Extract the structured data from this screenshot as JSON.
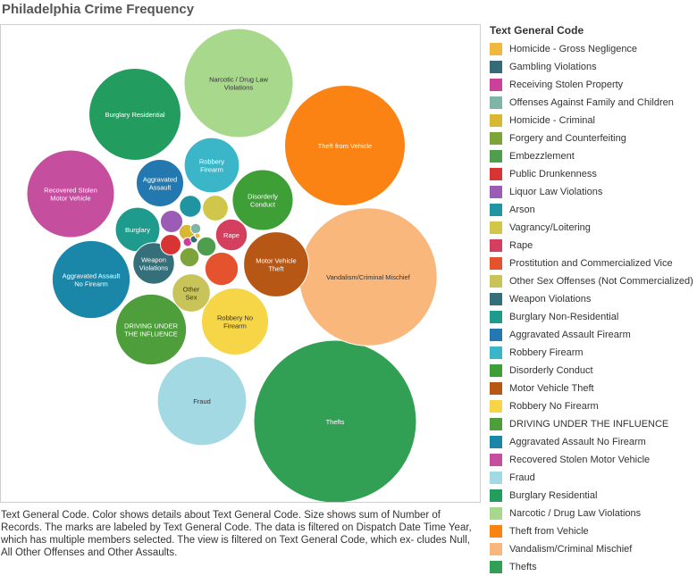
{
  "title": "Philadelphia Crime Frequency",
  "caption": "Text General Code.  Color shows details about Text General Code.  Size shows sum of Number of Records.  The marks are labeled by Text General Code. The data is filtered on Dispatch Date Time Year, which has multiple members selected. The view is filtered on Text General Code, which ex- cludes Null, All Other Offenses and Other Assaults.",
  "legend": {
    "title": "Text General Code",
    "items": [
      {
        "label": "Homicide - Gross Negligence",
        "color": "#F0B83E"
      },
      {
        "label": "Gambling Violations",
        "color": "#356B77"
      },
      {
        "label": "Receiving Stolen Property",
        "color": "#C9419B"
      },
      {
        "label": "Offenses Against Family and Children",
        "color": "#7FB4A9"
      },
      {
        "label": "Homicide - Criminal",
        "color": "#D8B832"
      },
      {
        "label": "Forgery and Counterfeiting",
        "color": "#7DA43A"
      },
      {
        "label": "Embezzlement",
        "color": "#4F9E4E"
      },
      {
        "label": "Public Drunkenness",
        "color": "#D93434"
      },
      {
        "label": "Liquor Law Violations",
        "color": "#9B5CB6"
      },
      {
        "label": "Arson",
        "color": "#1F95A2"
      },
      {
        "label": "Vagrancy/Loitering",
        "color": "#CFC64A"
      },
      {
        "label": "Rape",
        "color": "#D43F5F"
      },
      {
        "label": "Prostitution and Commercialized Vice",
        "color": "#E5522E"
      },
      {
        "label": "Other Sex Offenses (Not Commercialized)",
        "color": "#C8C45A"
      },
      {
        "label": "Weapon Violations",
        "color": "#356F7A"
      },
      {
        "label": "Burglary Non-Residential",
        "color": "#1E9B8C"
      },
      {
        "label": "Aggravated Assault Firearm",
        "color": "#2379AF"
      },
      {
        "label": "Robbery Firearm",
        "color": "#3AB6C8"
      },
      {
        "label": "Disorderly Conduct",
        "color": "#3E9F37"
      },
      {
        "label": "Motor Vehicle Theft",
        "color": "#B65716"
      },
      {
        "label": "Robbery No Firearm",
        "color": "#F6D647"
      },
      {
        "label": "DRIVING UNDER THE INFLUENCE",
        "color": "#4E9F3B"
      },
      {
        "label": "Aggravated Assault No Firearm",
        "color": "#1A87A9"
      },
      {
        "label": "Recovered Stolen Motor Vehicle",
        "color": "#C54E9E"
      },
      {
        "label": "Fraud",
        "color": "#A3D9E3"
      },
      {
        "label": "Burglary Residential",
        "color": "#229D5F"
      },
      {
        "label": "Narcotic / Drug Law Violations",
        "color": "#A8D88C"
      },
      {
        "label": "Theft from Vehicle",
        "color": "#FA8313"
      },
      {
        "label": "Vandalism/Criminal Mischief",
        "color": "#FAB77B"
      },
      {
        "label": "Thefts",
        "color": "#32A054"
      }
    ]
  },
  "chart_data": {
    "type": "bubble",
    "title": "Philadelphia Crime Frequency",
    "size_measure": "Number of Records",
    "bubbles": [
      {
        "label": "Thefts",
        "shown_label": "Thefts",
        "value": 100,
        "color": "#32A054"
      },
      {
        "label": "Vandalism/Criminal Mischief",
        "shown_label": "Vandalism/Criminal Mischief",
        "value": 72,
        "color": "#FAB77B"
      },
      {
        "label": "Theft from Vehicle",
        "shown_label": "Theft from Vehicle",
        "value": 55,
        "color": "#FA8313"
      },
      {
        "label": "Narcotic / Drug Law Violations",
        "shown_label": "Narcotic / Drug Law Violations",
        "value": 45,
        "color": "#A8D88C"
      },
      {
        "label": "Fraud",
        "shown_label": "Fraud",
        "value": 30,
        "color": "#A3D9E3"
      },
      {
        "label": "Burglary Residential",
        "shown_label": "Burglary Residential",
        "value": 32,
        "color": "#229D5F"
      },
      {
        "label": "Recovered Stolen Motor Vehicle",
        "shown_label": "Recovered Stolen Motor Vehicle",
        "value": 29,
        "color": "#C54E9E"
      },
      {
        "label": "Aggravated Assault No Firearm",
        "shown_label": "Aggravated Assault No Firearm",
        "value": 23,
        "color": "#1A87A9"
      },
      {
        "label": "DRIVING UNDER THE INFLUENCE",
        "shown_label": "DRIVING UNDER THE INFLUENCE",
        "value": 19,
        "color": "#4E9F3B"
      },
      {
        "label": "Robbery No Firearm",
        "shown_label": "Robbery No Firearm",
        "value": 17,
        "color": "#F6D647"
      },
      {
        "label": "Motor Vehicle Theft",
        "shown_label": "Motor Vehicle Theft",
        "value": 16,
        "color": "#B65716"
      },
      {
        "label": "Disorderly Conduct",
        "shown_label": "Disorderly Conduct",
        "value": 14,
        "color": "#3E9F37"
      },
      {
        "label": "Robbery Firearm",
        "shown_label": "Robbery Firearm",
        "value": 11.5,
        "color": "#3AB6C8"
      },
      {
        "label": "Aggravated Assault Firearm",
        "shown_label": "Aggravated Assault",
        "value": 8.5,
        "color": "#2379AF"
      },
      {
        "label": "Burglary Non-Residential",
        "shown_label": "Burglary",
        "value": 7.5,
        "color": "#1E9B8C"
      },
      {
        "label": "Weapon Violations",
        "shown_label": "Weapon Violations",
        "value": 6.5,
        "color": "#356F7A"
      },
      {
        "label": "Other Sex Offenses (Not Commercialized)",
        "shown_label": "Other Sex",
        "value": 5.5,
        "color": "#C8C45A"
      },
      {
        "label": "Prostitution and Commercialized Vice",
        "shown_label": "",
        "value": 4.2,
        "color": "#E5522E"
      },
      {
        "label": "Rape",
        "shown_label": "Rape",
        "value": 3.8,
        "color": "#D43F5F"
      },
      {
        "label": "Vagrancy/Loitering",
        "shown_label": "",
        "value": 2.5,
        "color": "#CFC64A"
      },
      {
        "label": "Arson",
        "shown_label": "",
        "value": 1.8,
        "color": "#1F95A2"
      },
      {
        "label": "Liquor Law Violations",
        "shown_label": "",
        "value": 1.9,
        "color": "#9B5CB6"
      },
      {
        "label": "Public Drunkenness",
        "shown_label": "",
        "value": 1.6,
        "color": "#D93434"
      },
      {
        "label": "Embezzlement",
        "shown_label": "",
        "value": 1.4,
        "color": "#4F9E4E"
      },
      {
        "label": "Forgery and Counterfeiting",
        "shown_label": "",
        "value": 1.4,
        "color": "#7DA43A"
      },
      {
        "label": "Homicide - Criminal",
        "shown_label": "",
        "value": 0.9,
        "color": "#D8B832"
      },
      {
        "label": "Offenses Against Family and Children",
        "shown_label": "",
        "value": 0.4,
        "color": "#7FB4A9"
      },
      {
        "label": "Receiving Stolen Property",
        "shown_label": "",
        "value": 0.3,
        "color": "#C9419B"
      },
      {
        "label": "Gambling Violations",
        "shown_label": "",
        "value": 0.2,
        "color": "#356B77"
      },
      {
        "label": "Homicide - Gross Negligence",
        "shown_label": "",
        "value": 0.1,
        "color": "#F0B83E"
      }
    ]
  }
}
